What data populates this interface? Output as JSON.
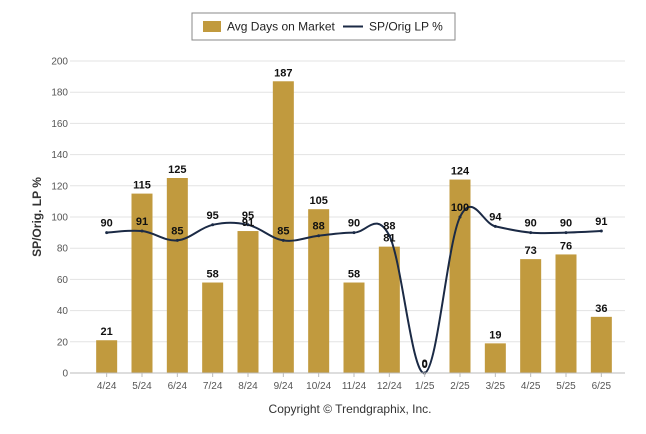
{
  "chart_data": {
    "type": "bar",
    "categories": [
      "4/24",
      "5/24",
      "6/24",
      "7/24",
      "8/24",
      "9/24",
      "10/24",
      "11/24",
      "12/24",
      "1/25",
      "2/25",
      "3/25",
      "4/25",
      "5/25",
      "6/25"
    ],
    "series": [
      {
        "name": "Avg Days on Market",
        "type": "bar",
        "values": [
          21,
          115,
          125,
          58,
          91,
          187,
          105,
          58,
          81,
          0,
          124,
          19,
          73,
          76,
          36
        ],
        "color": "#C19A3E"
      },
      {
        "name": "SP/Orig LP %",
        "type": "line",
        "values": [
          90,
          91,
          85,
          95,
          95,
          85,
          88,
          90,
          88,
          0,
          100,
          94,
          90,
          90,
          91
        ],
        "color": "#1B2A45"
      }
    ],
    "ylabel": "SP/Orig. LP %",
    "ylim": [
      0,
      200
    ],
    "yticks": [
      0,
      20,
      40,
      60,
      80,
      100,
      120,
      140,
      160,
      180,
      200
    ],
    "grid": true,
    "legend_position": "top-center"
  },
  "footer": {
    "copyright": "Copyright © Trendgraphix, Inc."
  }
}
